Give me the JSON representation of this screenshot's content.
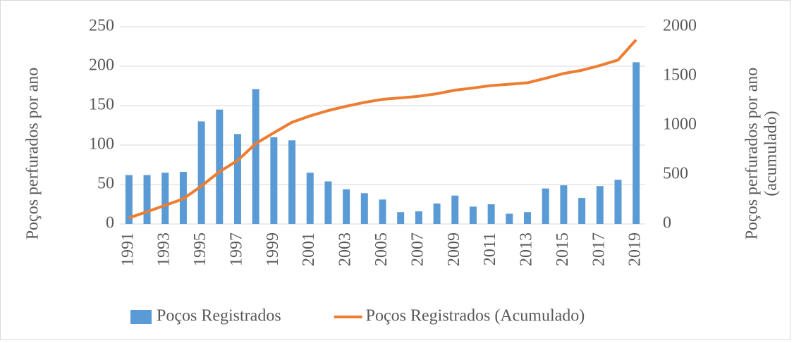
{
  "chart_data": {
    "type": "bar_line",
    "categories": [
      "1991",
      null,
      "1993",
      null,
      "1995",
      null,
      "1997",
      null,
      "1999",
      null,
      "2001",
      null,
      "2003",
      null,
      "2005",
      null,
      "2007",
      null,
      "2009",
      null,
      "2011",
      null,
      "2013",
      null,
      "2015",
      null,
      "2017",
      null,
      "2019"
    ],
    "series": [
      {
        "name": "Poços Registrados",
        "type": "bar",
        "color": "#5b9bd5",
        "values": [
          62,
          62,
          65,
          66,
          130,
          145,
          114,
          171,
          110,
          106,
          65,
          54,
          44,
          39,
          31,
          15,
          16,
          26,
          36,
          22,
          25,
          13,
          15,
          45,
          49,
          33,
          48,
          56,
          205
        ]
      },
      {
        "name": "Poços Registrados (Acumulado)",
        "type": "line",
        "axis": "y2",
        "color": "#ed7d31",
        "values": [
          62,
          124,
          189,
          255,
          385,
          530,
          644,
          815,
          925,
          1031,
          1096,
          1150,
          1194,
          1233,
          1264,
          1279,
          1295,
          1321,
          1357,
          1379,
          1404,
          1417,
          1432,
          1477,
          1526,
          1559,
          1607,
          1663,
          1868
        ]
      }
    ],
    "ylabel": "Poços perfurados por ano",
    "y2label": [
      "Poços perfurados por ano",
      "(acumulado)"
    ],
    "ylim": [
      0,
      250
    ],
    "yticks": [
      0,
      50,
      100,
      150,
      200,
      250
    ],
    "y2lim": [
      0,
      2000
    ],
    "y2ticks": [
      0,
      500,
      1000,
      1500,
      2000
    ],
    "grid": true,
    "legend": "bottom"
  }
}
